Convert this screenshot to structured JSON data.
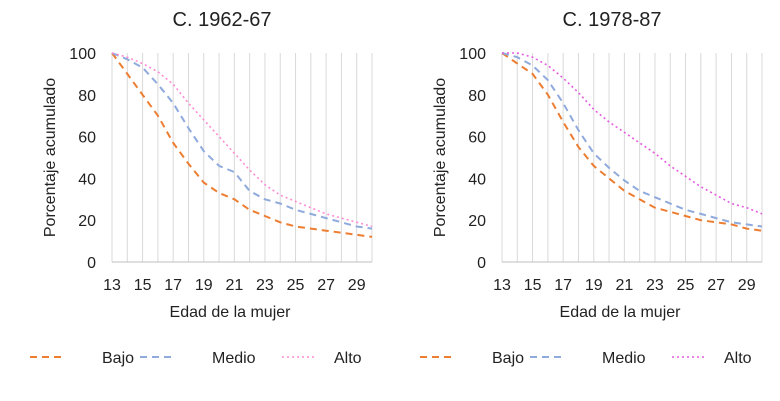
{
  "chart_data": [
    {
      "type": "line",
      "title": "C. 1962-67",
      "xlabel": "Edad de la mujer",
      "ylabel": "Porcentaje acumulado",
      "x": [
        13,
        14,
        15,
        16,
        17,
        18,
        19,
        20,
        21,
        22,
        23,
        24,
        25,
        26,
        27,
        28,
        29,
        30
      ],
      "x_ticks": [
        "13",
        "15",
        "17",
        "19",
        "21",
        "23",
        "25",
        "27",
        "29"
      ],
      "y_ticks": [
        "0",
        "20",
        "40",
        "60",
        "80",
        "100"
      ],
      "xlim": [
        13,
        30
      ],
      "ylim": [
        0,
        100
      ],
      "grid": "vertical",
      "legend_position": "bottom",
      "series": [
        {
          "name": "Bajo",
          "color": "#ED7D31",
          "dash": "dashed",
          "values": [
            100,
            90,
            80,
            70,
            57,
            47,
            38,
            33,
            30,
            25,
            22,
            19,
            17,
            16,
            15,
            14,
            13,
            12
          ]
        },
        {
          "name": "Medio",
          "color": "#8FAADC",
          "dash": "dashed",
          "values": [
            100,
            97,
            93,
            85,
            76,
            64,
            53,
            46,
            43,
            34,
            30,
            28,
            25,
            23,
            21,
            19,
            17,
            16
          ]
        },
        {
          "name": "Alto",
          "color": "#FF8BD3",
          "dash": "dotted",
          "values": [
            100,
            98,
            95,
            91,
            85,
            76,
            68,
            60,
            52,
            44,
            37,
            32,
            29,
            26,
            23,
            21,
            19,
            17
          ]
        }
      ]
    },
    {
      "type": "line",
      "title": "C. 1978-87",
      "xlabel": "Edad de la mujer",
      "ylabel": "Porcentaje acumulado",
      "x": [
        13,
        14,
        15,
        16,
        17,
        18,
        19,
        20,
        21,
        22,
        23,
        24,
        25,
        26,
        27,
        28,
        29,
        30
      ],
      "x_ticks": [
        "13",
        "15",
        "17",
        "19",
        "21",
        "23",
        "25",
        "27",
        "29"
      ],
      "y_ticks": [
        "0",
        "20",
        "40",
        "60",
        "80",
        "100"
      ],
      "xlim": [
        13,
        30
      ],
      "ylim": [
        0,
        100
      ],
      "grid": "vertical",
      "legend_position": "bottom",
      "series": [
        {
          "name": "Bajo",
          "color": "#ED7D31",
          "dash": "dashed",
          "values": [
            100,
            95,
            90,
            80,
            67,
            55,
            46,
            40,
            34,
            30,
            26,
            24,
            22,
            20,
            19,
            18,
            16,
            15
          ]
        },
        {
          "name": "Medio",
          "color": "#8FAADC",
          "dash": "dashed",
          "values": [
            100,
            98,
            94,
            87,
            76,
            63,
            52,
            45,
            39,
            34,
            31,
            28,
            25,
            23,
            21,
            19,
            18,
            17
          ]
        },
        {
          "name": "Alto",
          "color": "#E75BE0",
          "dash": "dotted",
          "values": [
            100,
            100,
            98,
            94,
            88,
            81,
            73,
            67,
            62,
            57,
            52,
            46,
            41,
            36,
            32,
            28,
            26,
            23
          ]
        }
      ]
    }
  ]
}
